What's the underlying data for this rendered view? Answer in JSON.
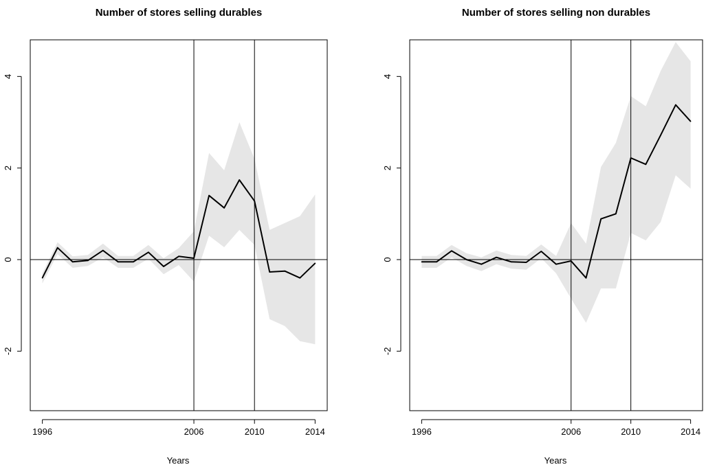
{
  "chart_data": [
    {
      "type": "line",
      "title": "Number of stores selling durables",
      "xlabel": "Years",
      "ylabel": "",
      "xlim": [
        1996,
        2014
      ],
      "ylim": [
        -3.3,
        4.8
      ],
      "x_ticks": [
        "1996",
        "2006",
        "2010",
        "2014"
      ],
      "y_ticks": [
        "-2",
        "0",
        "2",
        "4"
      ],
      "vlines": [
        2006,
        2010
      ],
      "hline": 0,
      "x": [
        1996,
        1997,
        1998,
        1999,
        2000,
        2001,
        2002,
        2003,
        2004,
        2005,
        2006,
        2007,
        2008,
        2009,
        2010,
        2011,
        2012,
        2013,
        2014
      ],
      "series": [
        {
          "values": [
            -0.4,
            0.26,
            -0.05,
            -0.02,
            0.2,
            -0.05,
            -0.05,
            0.16,
            -0.15,
            0.07,
            0.03,
            1.4,
            1.13,
            1.74,
            1.28,
            -0.27,
            -0.25,
            -0.4,
            -0.08
          ]
        }
      ],
      "band_upper": [
        -0.3,
        0.38,
        0.07,
        0.1,
        0.35,
        0.08,
        0.08,
        0.32,
        0.03,
        0.25,
        0.62,
        2.33,
        1.95,
        3.0,
        2.2,
        0.65,
        0.8,
        0.95,
        1.42
      ],
      "band_lower": [
        -0.52,
        0.12,
        -0.18,
        -0.14,
        0.05,
        -0.18,
        -0.18,
        0.02,
        -0.32,
        -0.12,
        -0.48,
        0.52,
        0.27,
        0.65,
        0.32,
        -1.3,
        -1.45,
        -1.78,
        -1.85
      ],
      "band_color": "#e6e6e6",
      "line_color": "#000000"
    },
    {
      "type": "line",
      "title": "Number of stores selling non durables",
      "xlabel": "Years",
      "ylabel": "",
      "xlim": [
        1996,
        2014
      ],
      "ylim": [
        -3.3,
        4.8
      ],
      "x_ticks": [
        "1996",
        "2006",
        "2010",
        "2014"
      ],
      "y_ticks": [
        "-2",
        "0",
        "2",
        "4"
      ],
      "vlines": [
        2006,
        2010
      ],
      "hline": 0,
      "x": [
        1996,
        1997,
        1998,
        1999,
        2000,
        2001,
        2002,
        2003,
        2004,
        2005,
        2006,
        2007,
        2008,
        2009,
        2010,
        2011,
        2012,
        2013,
        2014
      ],
      "series": [
        {
          "values": [
            -0.05,
            -0.05,
            0.19,
            0.0,
            -0.1,
            0.05,
            -0.05,
            -0.06,
            0.18,
            -0.1,
            -0.03,
            -0.4,
            0.89,
            1.0,
            2.22,
            2.08,
            2.72,
            3.38,
            3.02
          ]
        }
      ],
      "band_upper": [
        0.08,
        0.08,
        0.32,
        0.14,
        0.05,
        0.2,
        0.1,
        0.08,
        0.33,
        0.08,
        0.8,
        0.35,
        2.02,
        2.55,
        3.57,
        3.35,
        4.12,
        4.75,
        4.33
      ],
      "band_lower": [
        -0.18,
        -0.18,
        0.05,
        -0.14,
        -0.25,
        -0.1,
        -0.2,
        -0.22,
        0.03,
        -0.3,
        -0.85,
        -1.38,
        -0.63,
        -0.63,
        0.58,
        0.42,
        0.82,
        1.84,
        1.55
      ],
      "band_color": "#e6e6e6",
      "line_color": "#000000"
    }
  ]
}
